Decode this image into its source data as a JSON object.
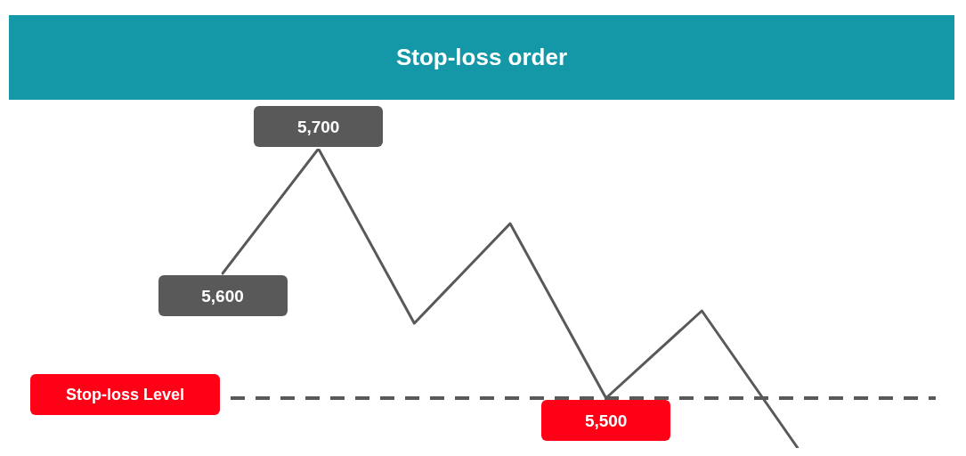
{
  "chart_data": {
    "type": "line",
    "title": "Stop-loss order",
    "categories": [
      null,
      null,
      null,
      null,
      null,
      null,
      null
    ],
    "values": [
      5600,
      5700,
      5560,
      5640,
      5500,
      5570,
      5460
    ],
    "color": "#595959",
    "value_labels": [
      "5,600",
      "5,700",
      null,
      null,
      "5,500",
      null,
      null
    ],
    "tick_labels": false,
    "legend": false,
    "ref_lines": [
      {
        "axis": "y",
        "value": 5500,
        "label": "Stop-loss Level",
        "color": "#595959",
        "line_style": "dashed"
      }
    ]
  }
}
